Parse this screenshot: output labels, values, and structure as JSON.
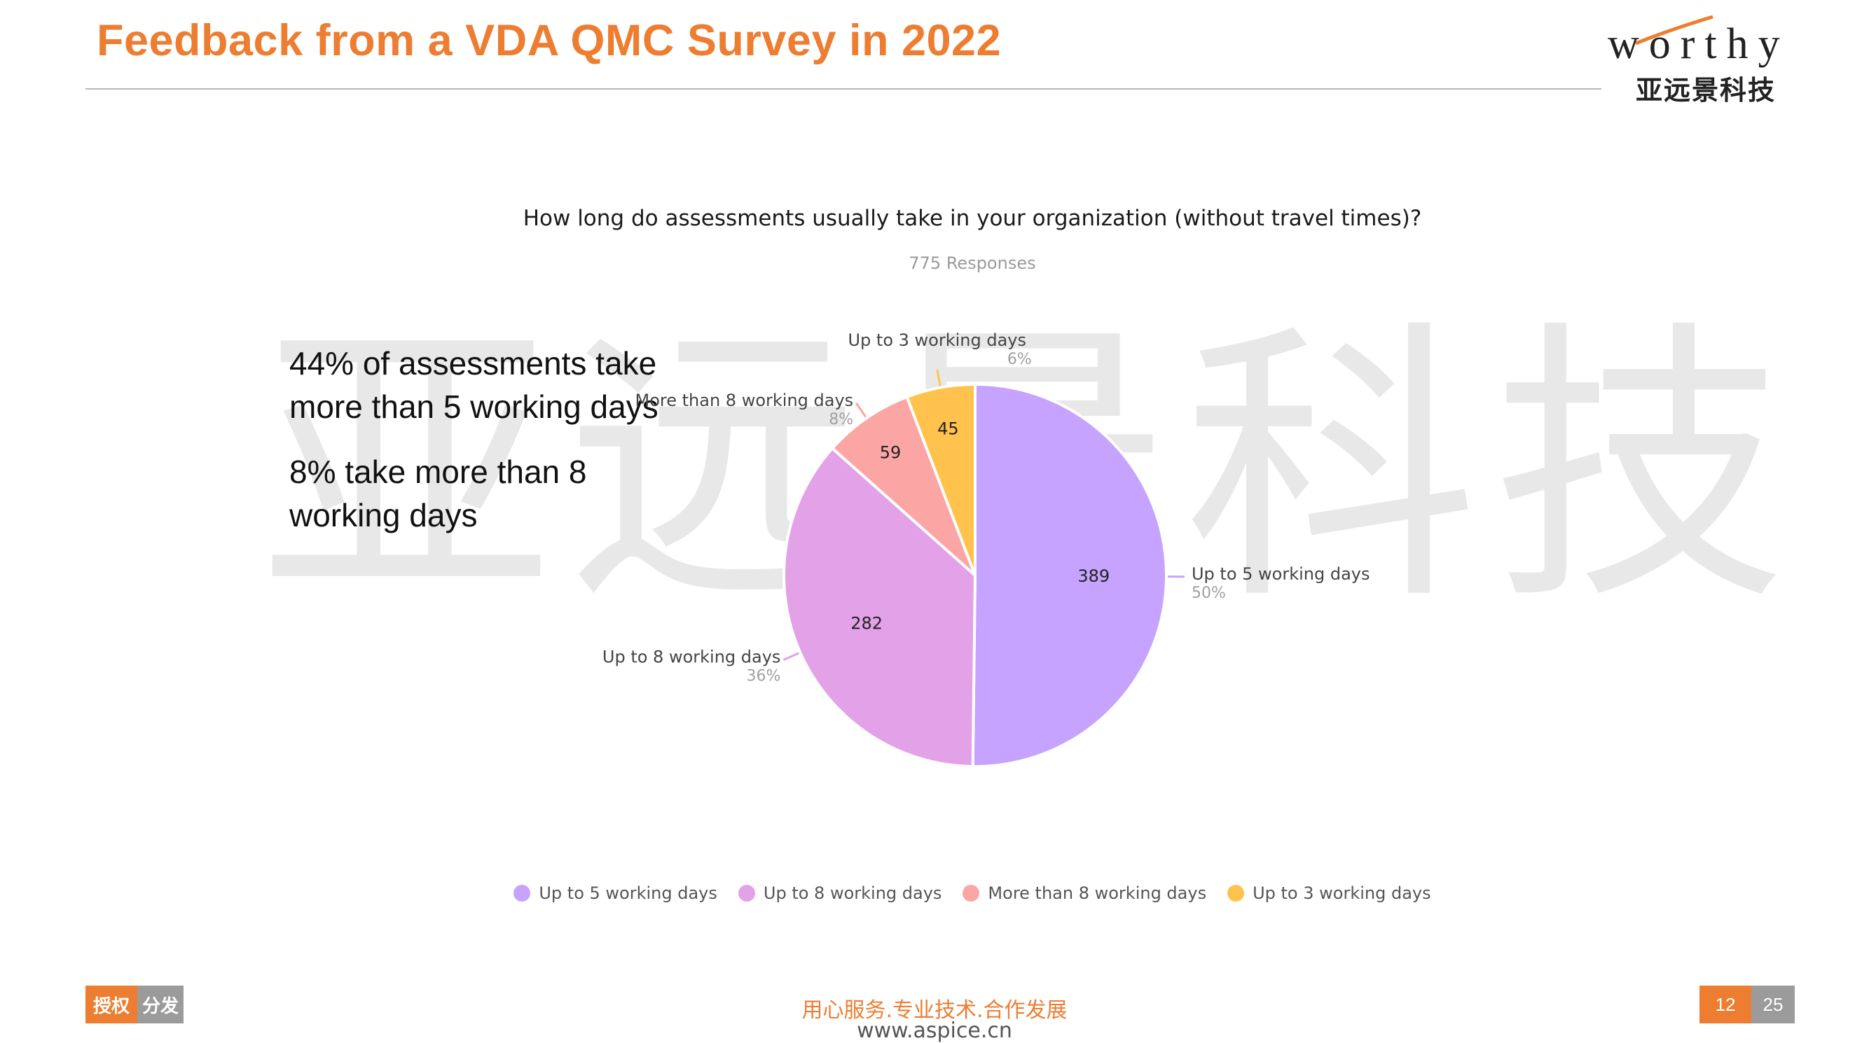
{
  "header": {
    "title": "Feedback from a VDA QMC Survey in 2022"
  },
  "logo": {
    "word": "worthy",
    "cn": "亚远景科技"
  },
  "watermark": "亚远景科技",
  "notes": {
    "line1": "44% of assessments take more than 5 working days",
    "line2": "8% take more than 8 working days"
  },
  "chart_data": {
    "type": "pie",
    "title": "How long do assessments usually take in your organization (without travel times)?",
    "subtitle": "775 Responses",
    "slices": [
      {
        "name": "Up to 5 working days",
        "value": 389,
        "percent_label": "50%",
        "color": "#C5A3FF"
      },
      {
        "name": "Up to 8 working days",
        "value": 282,
        "percent_label": "36%",
        "color": "#E3A1E8"
      },
      {
        "name": "More than 8 working days",
        "value": 59,
        "percent_label": "8%",
        "color": "#FCA5A5"
      },
      {
        "name": "Up to 3 working days",
        "value": 45,
        "percent_label": "6%",
        "color": "#FFC34D"
      }
    ],
    "legend_position": "bottom"
  },
  "footer": {
    "slogan": "用心服务.专业技术.合作发展",
    "url": "www.aspice.cn",
    "auth_label": "授权",
    "dist_label": "分发",
    "page_current": "12",
    "page_total": "25"
  }
}
